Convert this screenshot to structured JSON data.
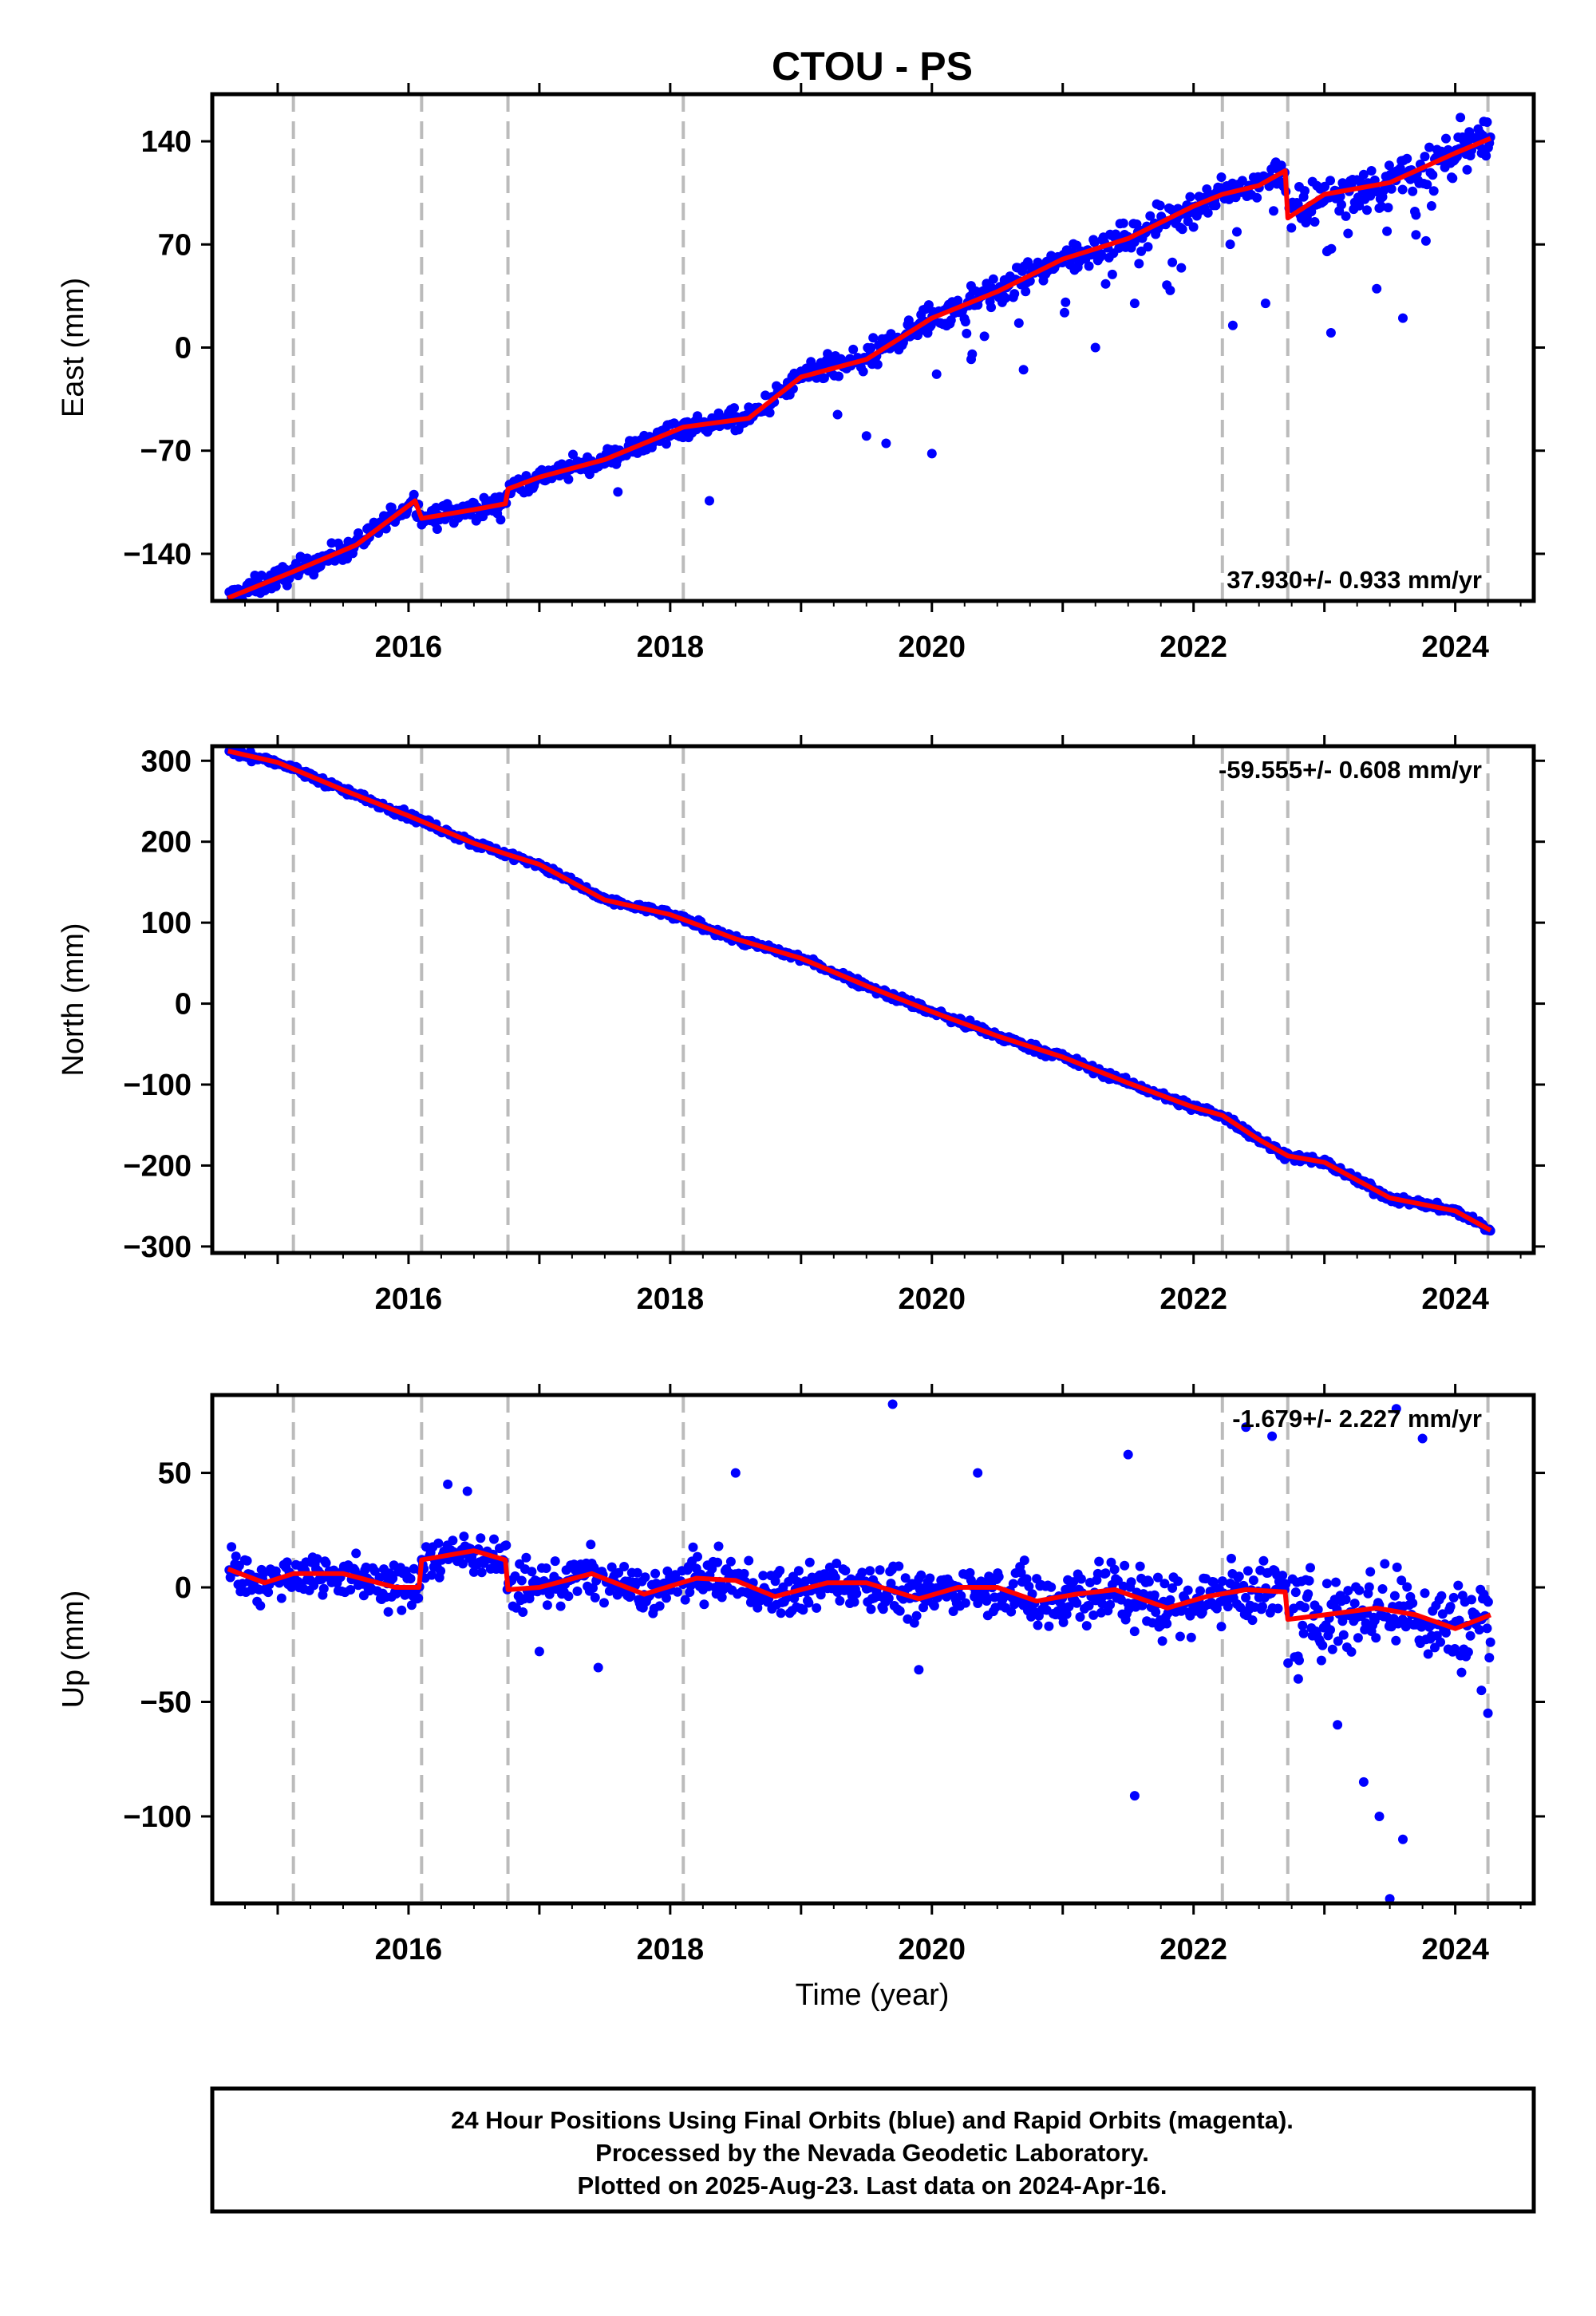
{
  "chart_data": {
    "type": "scatter",
    "title": "CTOU - PS",
    "xlabel": "Time (year)",
    "x_range": [
      2014.5,
      2024.6
    ],
    "x_ticks": [
      "2016",
      "2018",
      "2020",
      "2022",
      "2024"
    ],
    "x_tick_values": [
      2016,
      2018,
      2020,
      2022,
      2024
    ],
    "step_epochs": [
      2015.12,
      2016.1,
      2016.76,
      2018.1,
      2022.22,
      2022.72,
      2024.25
    ],
    "colors": {
      "data": "#0000ff",
      "model": "#ff0000",
      "steps": "#bbbbbb"
    },
    "panels": [
      {
        "id": "east",
        "ylabel": "East (mm)",
        "ylim": [
          -172,
          172
        ],
        "y_ticks": [
          "140",
          "70",
          "0",
          "−70",
          "−140"
        ],
        "y_tick_values": [
          140,
          70,
          0,
          -70,
          -140
        ],
        "rate_label": "37.930+/- 0.933 mm/yr",
        "rate_position": "bottom-right",
        "trend": {
          "x": [
            2014.62,
            2015.12,
            2015.6,
            2016.05,
            2016.1,
            2016.5,
            2016.74,
            2016.76,
            2017.0,
            2017.5,
            2018.1,
            2018.6,
            2019.0,
            2019.5,
            2020.0,
            2020.5,
            2021.0,
            2021.5,
            2022.0,
            2022.22,
            2022.5,
            2022.7,
            2022.72,
            2023.0,
            2023.5,
            2024.0,
            2024.27
          ],
          "y": [
            -170,
            -152,
            -134,
            -104,
            -116,
            -110,
            -106,
            -96,
            -88,
            -76,
            -54,
            -48,
            -20,
            -8,
            20,
            38,
            60,
            74,
            96,
            104,
            110,
            120,
            88,
            104,
            112,
            132,
            142
          ]
        },
        "outliers": {
          "x": [
            2017.6,
            2018.3,
            2019.5,
            2019.65,
            2020.0,
            2020.3,
            2020.7,
            2021.25,
            2021.55,
            2022.3,
            2022.55,
            2023.05,
            2023.4,
            2023.6,
            2023.7
          ],
          "y": [
            -98,
            -104,
            -60,
            -65,
            -72,
            -8,
            -15,
            0,
            30,
            15,
            30,
            10,
            40,
            20,
            90
          ]
        }
      },
      {
        "id": "north",
        "ylabel": "North (mm)",
        "ylim": [
          -308,
          318
        ],
        "y_ticks": [
          "300",
          "200",
          "100",
          "0",
          "−100",
          "−200",
          "−300"
        ],
        "y_tick_values": [
          300,
          200,
          100,
          0,
          -100,
          -200,
          -300
        ],
        "rate_label": "-59.555+/- 0.608 mm/yr",
        "rate_position": "top-right",
        "trend": {
          "x": [
            2014.62,
            2015.0,
            2015.5,
            2016.0,
            2016.5,
            2016.76,
            2017.0,
            2017.5,
            2018.0,
            2018.5,
            2019.0,
            2019.5,
            2020.0,
            2020.5,
            2021.0,
            2021.5,
            2022.0,
            2022.22,
            2022.5,
            2022.72,
            2023.0,
            2023.5,
            2024.0,
            2024.27
          ],
          "y": [
            312,
            298,
            264,
            232,
            198,
            184,
            172,
            128,
            110,
            80,
            56,
            22,
            -10,
            -40,
            -66,
            -98,
            -128,
            -138,
            -168,
            -188,
            -196,
            -240,
            -256,
            -280
          ]
        },
        "outliers": {
          "x": [],
          "y": []
        }
      },
      {
        "id": "up",
        "ylabel": "Up (mm)",
        "ylim": [
          -138,
          84
        ],
        "y_ticks": [
          "50",
          "0",
          "−50",
          "−100"
        ],
        "y_tick_values": [
          50,
          0,
          -50,
          -100
        ],
        "rate_label": "-1.679+/- 2.227 mm/yr",
        "rate_position": "top-right",
        "trend": {
          "x": [
            2014.62,
            2014.9,
            2015.12,
            2015.5,
            2015.9,
            2016.08,
            2016.1,
            2016.5,
            2016.74,
            2016.76,
            2017.0,
            2017.4,
            2017.8,
            2018.2,
            2018.5,
            2018.8,
            2019.2,
            2019.5,
            2019.9,
            2020.2,
            2020.5,
            2020.8,
            2021.1,
            2021.4,
            2021.8,
            2022.1,
            2022.4,
            2022.7,
            2022.72,
            2023.0,
            2023.4,
            2023.7,
            2024.0,
            2024.27
          ],
          "y": [
            8,
            2,
            6,
            6,
            0,
            0,
            12,
            16,
            12,
            -1,
            0,
            6,
            -3,
            4,
            3,
            -4,
            2,
            2,
            -5,
            0,
            0,
            -6,
            -3,
            -1,
            -9,
            -4,
            -1,
            -2,
            -14,
            -12,
            -9,
            -12,
            -18,
            -12
          ]
        },
        "outliers": {
          "x": [
            2016.3,
            2016.45,
            2017.45,
            2017.0,
            2018.5,
            2019.7,
            2019.9,
            2020.35,
            2021.5,
            2021.55,
            2022.4,
            2022.6,
            2022.8,
            2023.1,
            2023.3,
            2023.42,
            2023.5,
            2023.6,
            2023.75,
            2023.55,
            2024.2,
            2024.25
          ],
          "y": [
            45,
            42,
            -35,
            -28,
            50,
            80,
            -36,
            50,
            58,
            -91,
            70,
            66,
            -40,
            -60,
            -85,
            -100,
            -136,
            -110,
            65,
            78,
            -45,
            -55
          ]
        }
      }
    ]
  },
  "footer": {
    "line1": "24 Hour Positions Using Final Orbits (blue) and Rapid Orbits (magenta).",
    "line2": "Processed by the Nevada Geodetic Laboratory.",
    "line3": "Plotted on 2025-Aug-23. Last data on 2024-Apr-16."
  }
}
